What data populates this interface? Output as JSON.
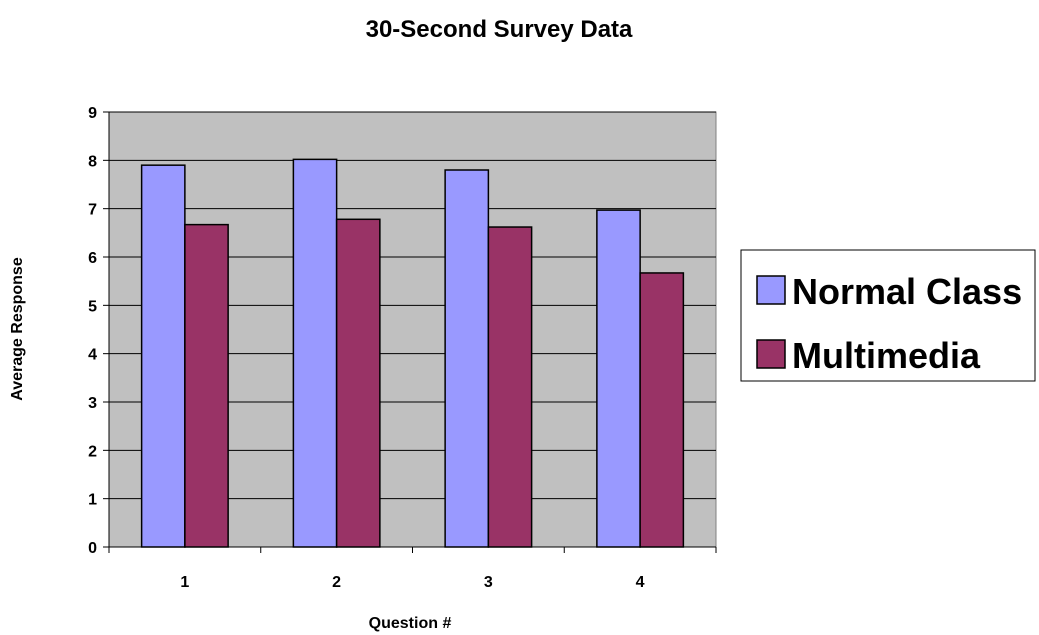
{
  "chart_data": {
    "type": "bar",
    "title": "30-Second Survey Data",
    "xlabel": "Question #",
    "ylabel": "Average Response",
    "categories": [
      "1",
      "2",
      "3",
      "4"
    ],
    "series": [
      {
        "name": "Normal Class",
        "values": [
          7.9,
          8.02,
          7.8,
          6.97
        ],
        "color": "#9999ff"
      },
      {
        "name": "Multimedia",
        "values": [
          6.67,
          6.78,
          6.62,
          5.67
        ],
        "color": "#993366"
      }
    ],
    "ylim": [
      0,
      9
    ],
    "yticks": [
      "0",
      "1",
      "2",
      "3",
      "4",
      "5",
      "6",
      "7",
      "8",
      "9"
    ],
    "grid": true,
    "plot_background": "#c0c0c0",
    "legend_position": "right"
  }
}
